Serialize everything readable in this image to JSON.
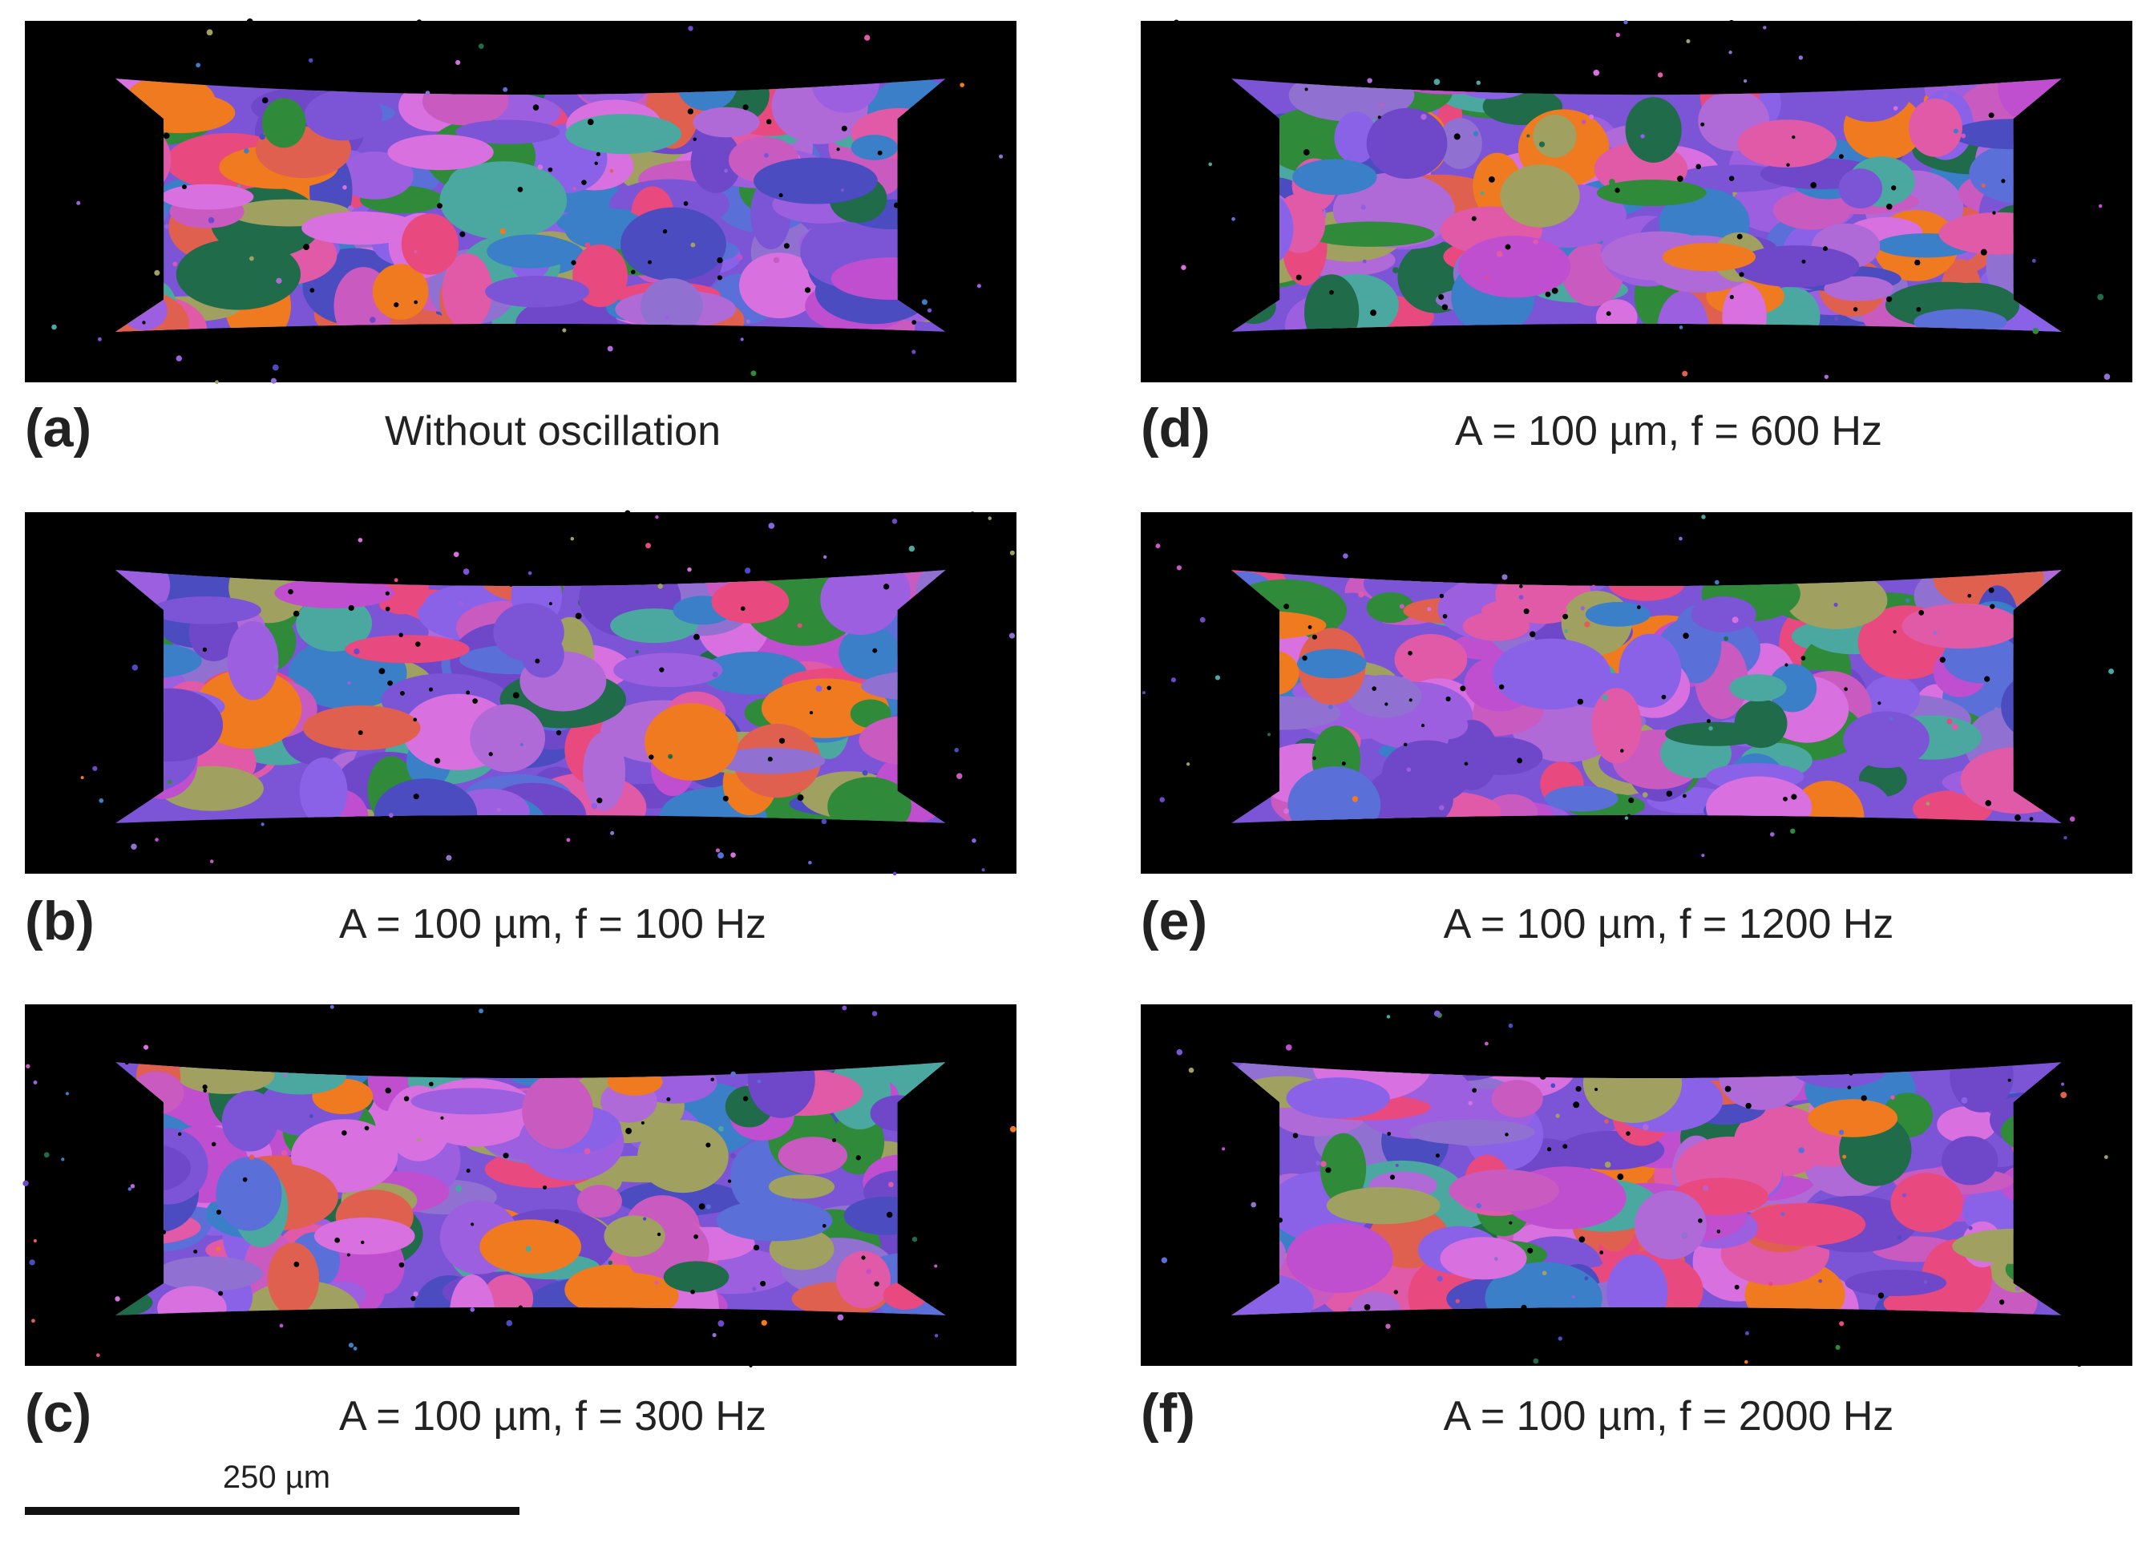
{
  "panels": [
    {
      "label": "(a)",
      "caption": "Without oscillation"
    },
    {
      "label": "(b)",
      "caption": "A = 100 µm, f = 100 Hz"
    },
    {
      "label": "(c)",
      "caption": "A = 100 µm, f = 300 Hz"
    },
    {
      "label": "(d)",
      "caption": "A = 100 µm, f = 600 Hz"
    },
    {
      "label": "(e)",
      "caption": "A = 100 µm, f = 1200 Hz"
    },
    {
      "label": "(f)",
      "caption": "A = 100 µm, f = 2000 Hz"
    }
  ],
  "scale_bar": {
    "label": "250 µm"
  }
}
